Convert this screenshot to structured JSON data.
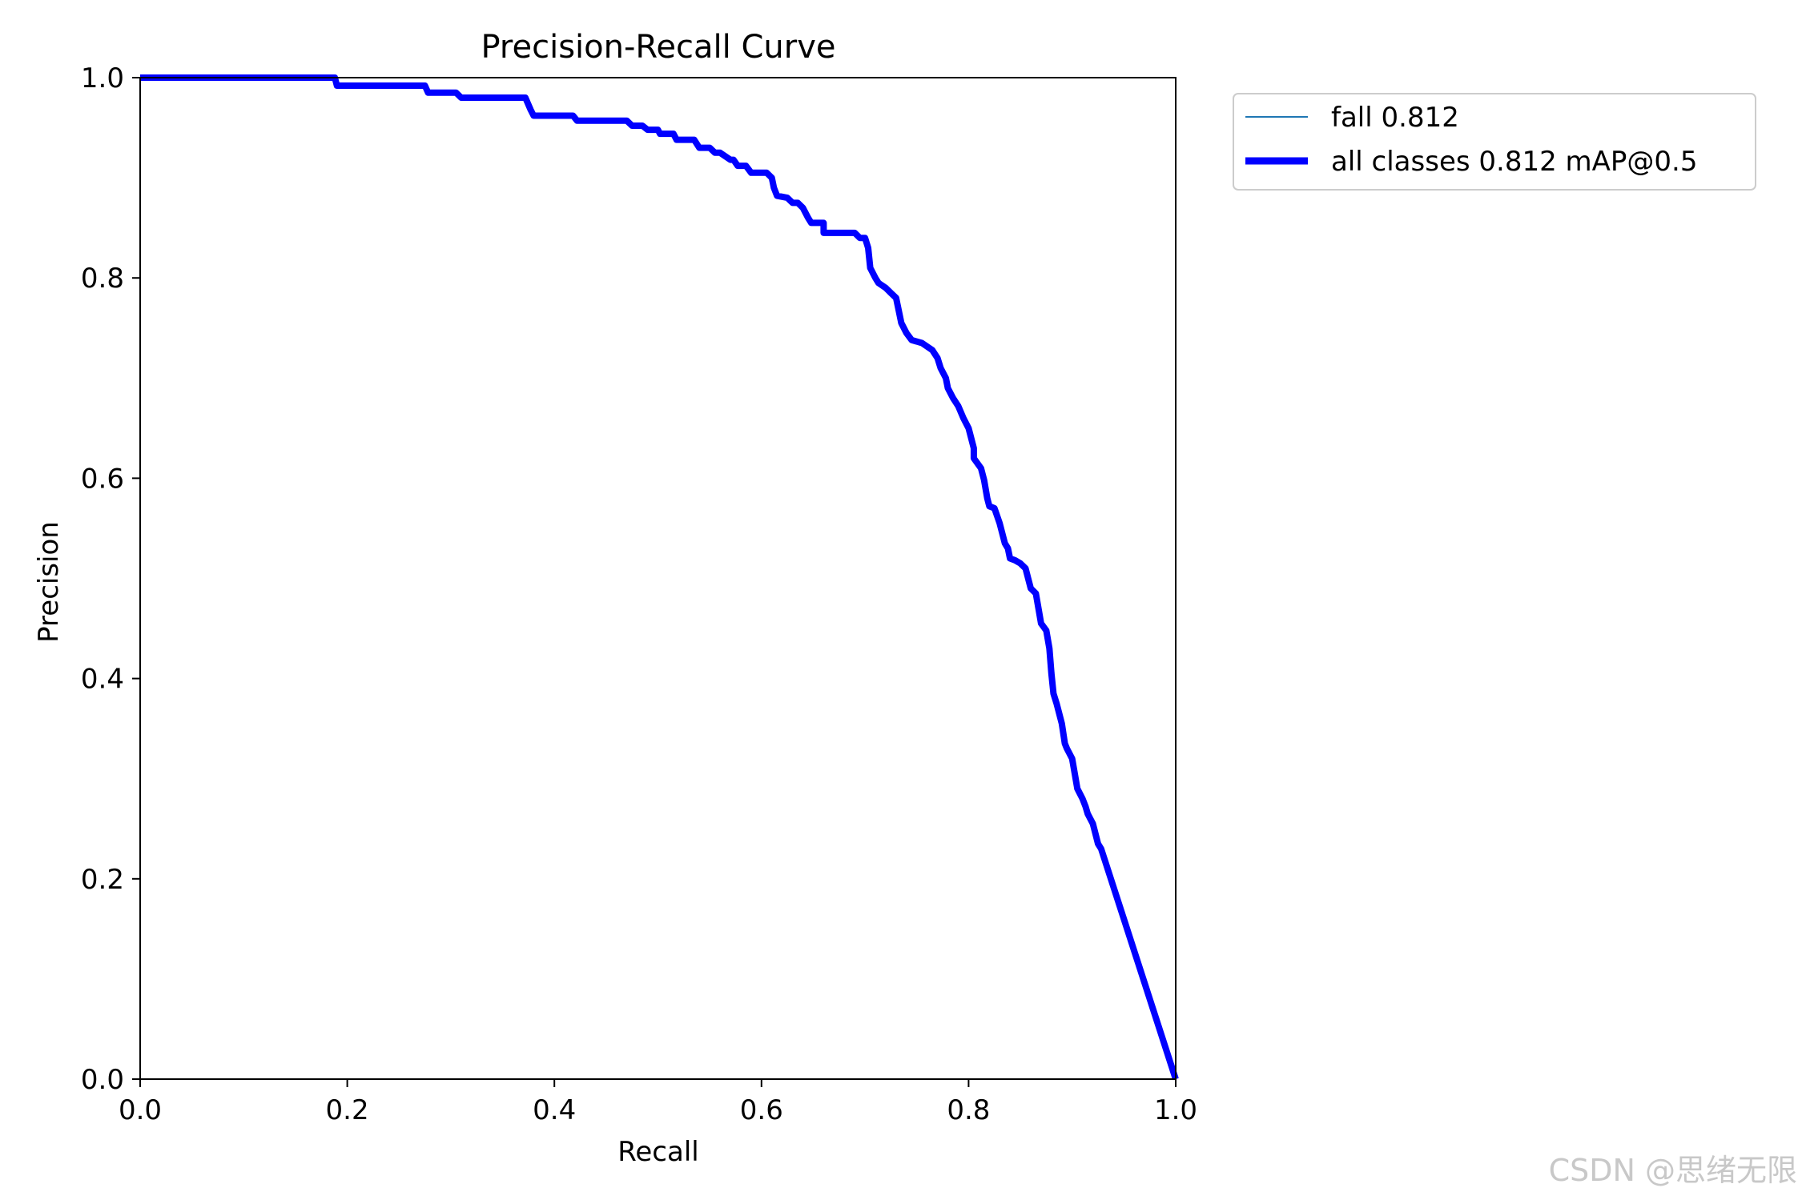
{
  "chart_data": {
    "type": "line",
    "title": "Precision-Recall Curve",
    "xlabel": "Recall",
    "ylabel": "Precision",
    "xlim": [
      0.0,
      1.0
    ],
    "ylim": [
      0.0,
      1.0
    ],
    "xticks": [
      "0.0",
      "0.2",
      "0.4",
      "0.6",
      "0.8",
      "1.0"
    ],
    "yticks": [
      "0.0",
      "0.2",
      "0.4",
      "0.6",
      "0.8",
      "1.0"
    ],
    "grid": false,
    "legend_position": "outside-top-right",
    "series": [
      {
        "name": "fall 0.812",
        "color": "#1f77b4",
        "line_style": "thin",
        "x": [
          0.0,
          0.188,
          0.19,
          0.275,
          0.278,
          0.305,
          0.31,
          0.372,
          0.377,
          0.38,
          0.418,
          0.422,
          0.47,
          0.475,
          0.485,
          0.49,
          0.5,
          0.502,
          0.515,
          0.518,
          0.535,
          0.54,
          0.55,
          0.555,
          0.56,
          0.57,
          0.573,
          0.577,
          0.585,
          0.59,
          0.605,
          0.61,
          0.612,
          0.615,
          0.625,
          0.63,
          0.635,
          0.64,
          0.645,
          0.648,
          0.66,
          0.66,
          0.69,
          0.695,
          0.7,
          0.703,
          0.705,
          0.71,
          0.713,
          0.72,
          0.725,
          0.73,
          0.732,
          0.735,
          0.74,
          0.745,
          0.755,
          0.765,
          0.77,
          0.773,
          0.778,
          0.78,
          0.785,
          0.79,
          0.795,
          0.8,
          0.805,
          0.805,
          0.812,
          0.815,
          0.818,
          0.82,
          0.825,
          0.83,
          0.835,
          0.838,
          0.84,
          0.845,
          0.85,
          0.855,
          0.86,
          0.865,
          0.87,
          0.875,
          0.878,
          0.88,
          0.882,
          0.885,
          0.89,
          0.893,
          0.895,
          0.9,
          0.905,
          0.91,
          0.913,
          0.915,
          0.92,
          0.925,
          0.928,
          1.0
        ],
        "y": [
          1.0,
          1.0,
          0.992,
          0.992,
          0.985,
          0.985,
          0.98,
          0.98,
          0.968,
          0.962,
          0.962,
          0.957,
          0.957,
          0.952,
          0.952,
          0.948,
          0.948,
          0.944,
          0.944,
          0.938,
          0.938,
          0.93,
          0.93,
          0.925,
          0.925,
          0.918,
          0.918,
          0.912,
          0.912,
          0.905,
          0.905,
          0.9,
          0.89,
          0.882,
          0.88,
          0.875,
          0.875,
          0.87,
          0.86,
          0.855,
          0.855,
          0.845,
          0.845,
          0.84,
          0.84,
          0.83,
          0.81,
          0.8,
          0.795,
          0.79,
          0.785,
          0.78,
          0.77,
          0.755,
          0.745,
          0.738,
          0.735,
          0.728,
          0.72,
          0.71,
          0.7,
          0.69,
          0.68,
          0.672,
          0.66,
          0.65,
          0.63,
          0.62,
          0.61,
          0.598,
          0.58,
          0.572,
          0.57,
          0.555,
          0.535,
          0.53,
          0.52,
          0.518,
          0.515,
          0.51,
          0.49,
          0.485,
          0.455,
          0.448,
          0.43,
          0.405,
          0.385,
          0.375,
          0.355,
          0.335,
          0.33,
          0.32,
          0.29,
          0.28,
          0.272,
          0.265,
          0.255,
          0.235,
          0.23,
          0.0
        ]
      },
      {
        "name": "all classes 0.812 mAP@0.5",
        "color": "#0000ff",
        "line_style": "thick",
        "x": [
          0.0,
          0.188,
          0.19,
          0.275,
          0.278,
          0.305,
          0.31,
          0.372,
          0.377,
          0.38,
          0.418,
          0.422,
          0.47,
          0.475,
          0.485,
          0.49,
          0.5,
          0.502,
          0.515,
          0.518,
          0.535,
          0.54,
          0.55,
          0.555,
          0.56,
          0.57,
          0.573,
          0.577,
          0.585,
          0.59,
          0.605,
          0.61,
          0.612,
          0.615,
          0.625,
          0.63,
          0.635,
          0.64,
          0.645,
          0.648,
          0.66,
          0.66,
          0.69,
          0.695,
          0.7,
          0.703,
          0.705,
          0.71,
          0.713,
          0.72,
          0.725,
          0.73,
          0.732,
          0.735,
          0.74,
          0.745,
          0.755,
          0.765,
          0.77,
          0.773,
          0.778,
          0.78,
          0.785,
          0.79,
          0.795,
          0.8,
          0.805,
          0.805,
          0.812,
          0.815,
          0.818,
          0.82,
          0.825,
          0.83,
          0.835,
          0.838,
          0.84,
          0.845,
          0.85,
          0.855,
          0.86,
          0.865,
          0.87,
          0.875,
          0.878,
          0.88,
          0.882,
          0.885,
          0.89,
          0.893,
          0.895,
          0.9,
          0.905,
          0.91,
          0.913,
          0.915,
          0.92,
          0.925,
          0.928,
          1.0
        ],
        "y": [
          1.0,
          1.0,
          0.992,
          0.992,
          0.985,
          0.985,
          0.98,
          0.98,
          0.968,
          0.962,
          0.962,
          0.957,
          0.957,
          0.952,
          0.952,
          0.948,
          0.948,
          0.944,
          0.944,
          0.938,
          0.938,
          0.93,
          0.93,
          0.925,
          0.925,
          0.918,
          0.918,
          0.912,
          0.912,
          0.905,
          0.905,
          0.9,
          0.89,
          0.882,
          0.88,
          0.875,
          0.875,
          0.87,
          0.86,
          0.855,
          0.855,
          0.845,
          0.845,
          0.84,
          0.84,
          0.83,
          0.81,
          0.8,
          0.795,
          0.79,
          0.785,
          0.78,
          0.77,
          0.755,
          0.745,
          0.738,
          0.735,
          0.728,
          0.72,
          0.71,
          0.7,
          0.69,
          0.68,
          0.672,
          0.66,
          0.65,
          0.63,
          0.62,
          0.61,
          0.598,
          0.58,
          0.572,
          0.57,
          0.555,
          0.535,
          0.53,
          0.52,
          0.518,
          0.515,
          0.51,
          0.49,
          0.485,
          0.455,
          0.448,
          0.43,
          0.405,
          0.385,
          0.375,
          0.355,
          0.335,
          0.33,
          0.32,
          0.29,
          0.28,
          0.272,
          0.265,
          0.255,
          0.235,
          0.23,
          0.0
        ]
      }
    ]
  },
  "watermark": "CSDN @思绪无限"
}
